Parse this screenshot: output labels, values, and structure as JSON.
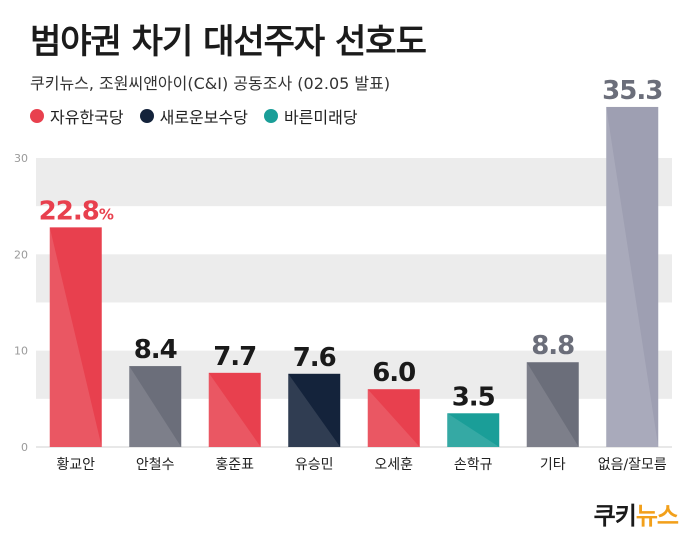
{
  "title": "범야권 차기 대선주자 선호도",
  "subtitle": "쿠키뉴스, 조원씨앤아이(C&I) 공동조사 (02.05 발표)",
  "legend": [
    {
      "label": "자유한국당",
      "color": "#e8404e"
    },
    {
      "label": "새로운보수당",
      "color": "#14233b"
    },
    {
      "label": "바른미래당",
      "color": "#1a9e98"
    }
  ],
  "brand": {
    "part1": "쿠키",
    "part2": "뉴스"
  },
  "chart_data": {
    "type": "bar",
    "categories": [
      "황교안",
      "안철수",
      "홍준표",
      "유승민",
      "오세훈",
      "손학규",
      "기타",
      "없음/잘모름"
    ],
    "values": [
      22.8,
      8.4,
      7.7,
      7.6,
      6.0,
      3.5,
      8.8,
      35.3
    ],
    "value_labels": [
      "22.8",
      "8.4",
      "7.7",
      "7.6",
      "6.0",
      "3.5",
      "8.8",
      "35.3"
    ],
    "first_label_unit": "%",
    "colors": [
      "#e8404e",
      "#6b6e7a",
      "#e8404e",
      "#14233b",
      "#e8404e",
      "#1a9e98",
      "#6b6e7a",
      "#9e9fb2"
    ],
    "label_colors": [
      "#e8404e",
      "#1a1a1a",
      "#1a1a1a",
      "#1a1a1a",
      "#1a1a1a",
      "#1a1a1a",
      "#6b6e7a",
      "#6b6e7a"
    ],
    "yticks": [
      0,
      10,
      20,
      30
    ],
    "ylim": [
      0,
      30
    ],
    "grid": true
  }
}
